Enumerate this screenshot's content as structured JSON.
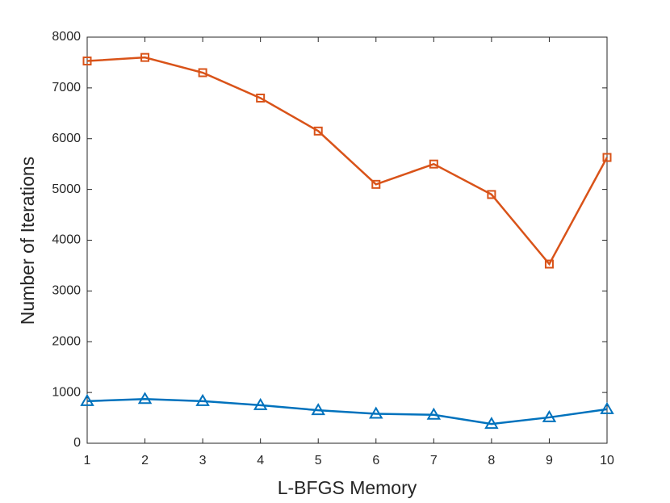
{
  "chart_data": {
    "type": "line",
    "xlabel": "L-BFGS Memory",
    "ylabel": "Number of Iterations",
    "x": [
      1,
      2,
      3,
      4,
      5,
      6,
      7,
      8,
      9,
      10
    ],
    "series": [
      {
        "color": "#d95319",
        "marker": "square",
        "values": [
          7530,
          7600,
          7300,
          6800,
          6150,
          5100,
          5500,
          4900,
          3530,
          5630
        ]
      },
      {
        "color": "#0072bd",
        "marker": "triangle",
        "values": [
          830,
          870,
          830,
          750,
          650,
          580,
          560,
          380,
          510,
          670
        ]
      }
    ],
    "xlim": [
      1,
      10
    ],
    "xticks": [
      1,
      2,
      3,
      4,
      5,
      6,
      7,
      8,
      9,
      10
    ],
    "ylim": [
      0,
      8000
    ],
    "yticks": [
      0,
      1000,
      2000,
      3000,
      4000,
      5000,
      6000,
      7000,
      8000
    ],
    "grid": false,
    "box": true
  }
}
